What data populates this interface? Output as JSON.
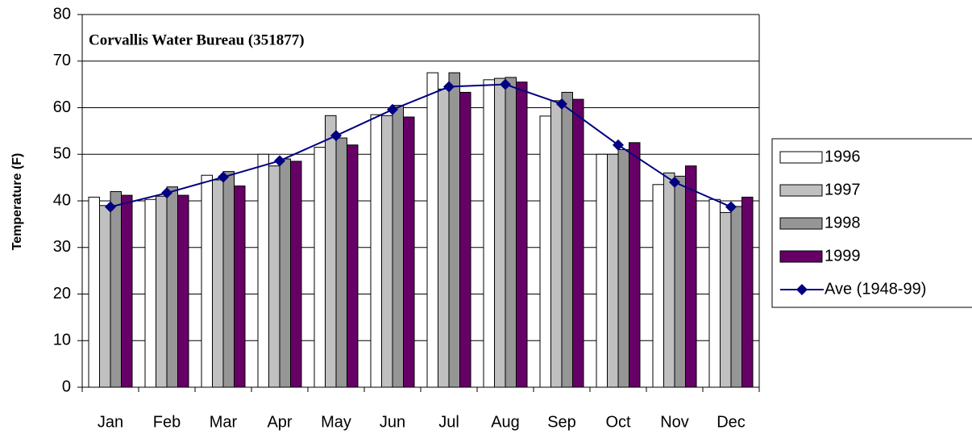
{
  "chart_data": {
    "type": "bar",
    "title": "Corvallis Water Bureau (351877)",
    "y_label": "Temperature (F)",
    "categories": [
      "Jan",
      "Feb",
      "Mar",
      "Apr",
      "May",
      "Jun",
      "Jul",
      "Aug",
      "Sep",
      "Oct",
      "Nov",
      "Dec"
    ],
    "series": [
      {
        "name": "1996",
        "color": "#ffffff",
        "type": "bar",
        "values": [
          40.8,
          40.3,
          45.5,
          50,
          51.5,
          58.5,
          67.5,
          66,
          58.2,
          50,
          43.5,
          40.3
        ]
      },
      {
        "name": "1997",
        "color": "#c0c0c0",
        "type": "bar",
        "values": [
          39,
          41,
          44.5,
          47.5,
          58.3,
          58.3,
          64,
          66.3,
          61.5,
          50,
          46,
          37.5
        ]
      },
      {
        "name": "1998",
        "color": "#969696",
        "type": "bar",
        "values": [
          42,
          43,
          46.3,
          49,
          53.5,
          60.5,
          67.5,
          66.5,
          63.3,
          51,
          45.3,
          38.8
        ]
      },
      {
        "name": "1999",
        "color": "#660066",
        "type": "bar",
        "values": [
          41.2,
          41.2,
          43.2,
          48.5,
          52,
          58,
          63.3,
          65.5,
          61.8,
          52.5,
          47.5,
          40.8
        ]
      },
      {
        "name": "Ave (1948-99)",
        "color": "#000080",
        "type": "line",
        "values": [
          38.7,
          41.7,
          45.1,
          48.6,
          54,
          59.6,
          64.5,
          65,
          60.8,
          52,
          44,
          38.7
        ]
      }
    ],
    "ylim": [
      0,
      80
    ],
    "yticks": [
      0,
      10,
      20,
      30,
      40,
      50,
      60,
      70,
      80
    ],
    "grid": true,
    "legend": "right"
  }
}
